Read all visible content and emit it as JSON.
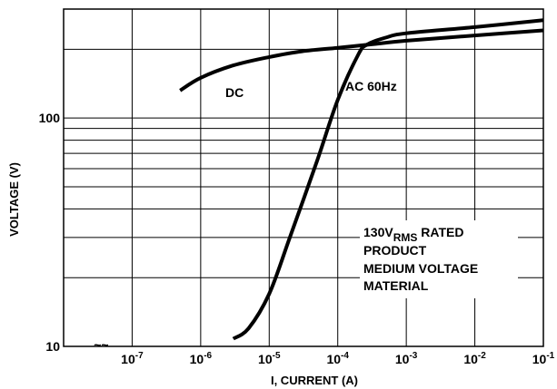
{
  "chart_data": {
    "type": "line",
    "xlabel": "I, CURRENT (A)",
    "ylabel": "VOLTAGE (V)",
    "xscale": "log",
    "yscale": "log",
    "xlim": [
      1e-08,
      0.1
    ],
    "ylim": [
      10,
      300
    ],
    "x_ticks": [
      {
        "base": "10",
        "exp": "-7"
      },
      {
        "base": "10",
        "exp": "-6"
      },
      {
        "base": "10",
        "exp": "-5"
      },
      {
        "base": "10",
        "exp": "-4"
      },
      {
        "base": "10",
        "exp": "-3"
      },
      {
        "base": "10",
        "exp": "-2"
      },
      {
        "base": "10",
        "exp": "-1"
      }
    ],
    "y_ticks": [
      "10",
      "100"
    ],
    "axis_break_symbol": "~~",
    "grid": true,
    "series": [
      {
        "name": "DC",
        "points": [
          [
            5e-07,
            132
          ],
          [
            1e-06,
            150
          ],
          [
            3e-06,
            170
          ],
          [
            1e-05,
            185
          ],
          [
            3e-05,
            196
          ],
          [
            0.0001,
            203
          ],
          [
            0.0003,
            210
          ],
          [
            0.001,
            218
          ],
          [
            0.01,
            230
          ],
          [
            0.1,
            242
          ]
        ]
      },
      {
        "name": "AC 60Hz",
        "points": [
          [
            3e-06,
            10.8
          ],
          [
            5e-06,
            12
          ],
          [
            1e-05,
            17
          ],
          [
            2e-05,
            30
          ],
          [
            5e-05,
            65
          ],
          [
            0.0001,
            120
          ],
          [
            0.0002,
            190
          ],
          [
            0.00027,
            210
          ],
          [
            0.0005,
            225
          ],
          [
            0.001,
            235
          ],
          [
            0.01,
            250
          ],
          [
            0.1,
            268
          ]
        ]
      }
    ],
    "annotation": {
      "prefix": "130V",
      "subscript": "RMS",
      "line1_suffix": " RATED",
      "line2": "PRODUCT",
      "line3": "MEDIUM VOLTAGE",
      "line4": "MATERIAL"
    }
  }
}
